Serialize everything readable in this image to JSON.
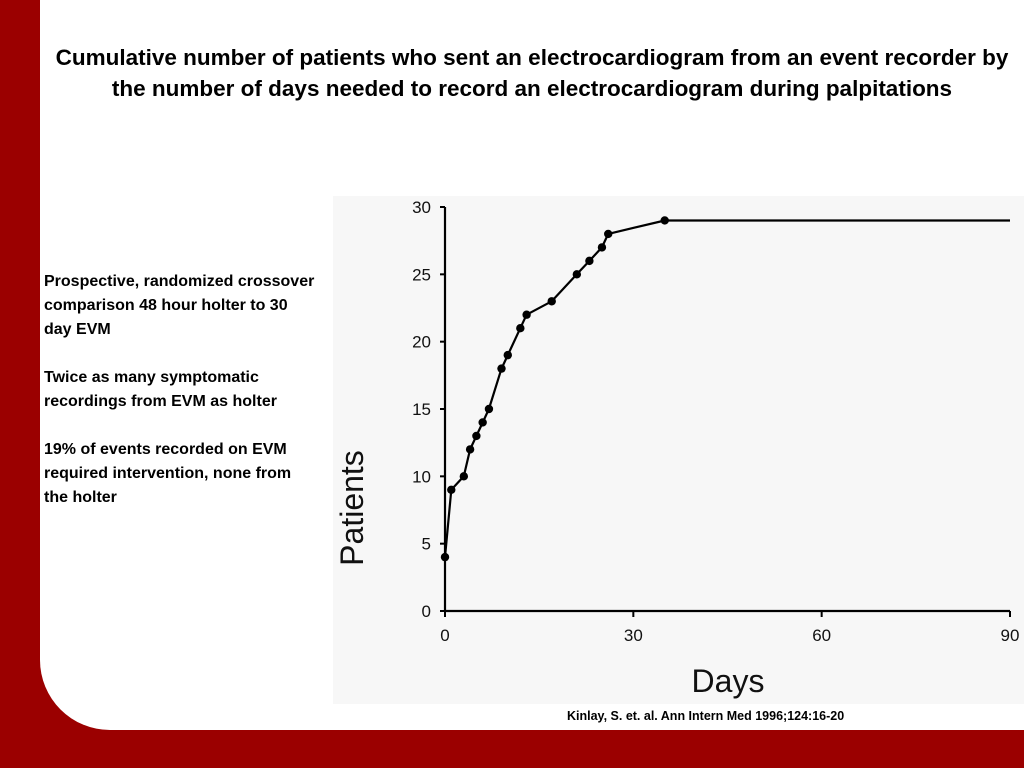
{
  "slide": {
    "title": "Cumulative number of patients who sent an electrocardiogram from an event recorder by the number of days needed to record an electrocardiogram during palpitations",
    "bullets": [
      "Prospective, randomized crossover comparison 48 hour holter to 30 day EVM",
      "Twice as many symptomatic recordings from EVM as holter",
      "19% of events recorded on EVM required intervention, none from the holter"
    ],
    "citation": "Kinlay, S. et. al. Ann Intern Med 1996;124:16-20",
    "colors": {
      "background": "#9b0000",
      "panel": "#ffffff",
      "line": "#000000"
    }
  },
  "chart_data": {
    "type": "line",
    "xlabel": "Days",
    "ylabel": "Patients",
    "xlim": [
      0,
      90
    ],
    "ylim": [
      0,
      30
    ],
    "xticks": [
      "0",
      "30",
      "60",
      "90"
    ],
    "yticks": [
      "0",
      "5",
      "10",
      "15",
      "20",
      "25",
      "30"
    ],
    "grid": false,
    "series": [
      {
        "points": [
          [
            0,
            4
          ],
          [
            1,
            9
          ],
          [
            3,
            10
          ],
          [
            4,
            12
          ],
          [
            5,
            13
          ],
          [
            6,
            14
          ],
          [
            7,
            15
          ],
          [
            9,
            18
          ],
          [
            10,
            19
          ],
          [
            12,
            21
          ],
          [
            13,
            22
          ],
          [
            17,
            23
          ],
          [
            21,
            25
          ],
          [
            23,
            26
          ],
          [
            25,
            27
          ],
          [
            26,
            28
          ],
          [
            35,
            29
          ]
        ],
        "line_end": [
          90,
          29
        ]
      }
    ]
  }
}
